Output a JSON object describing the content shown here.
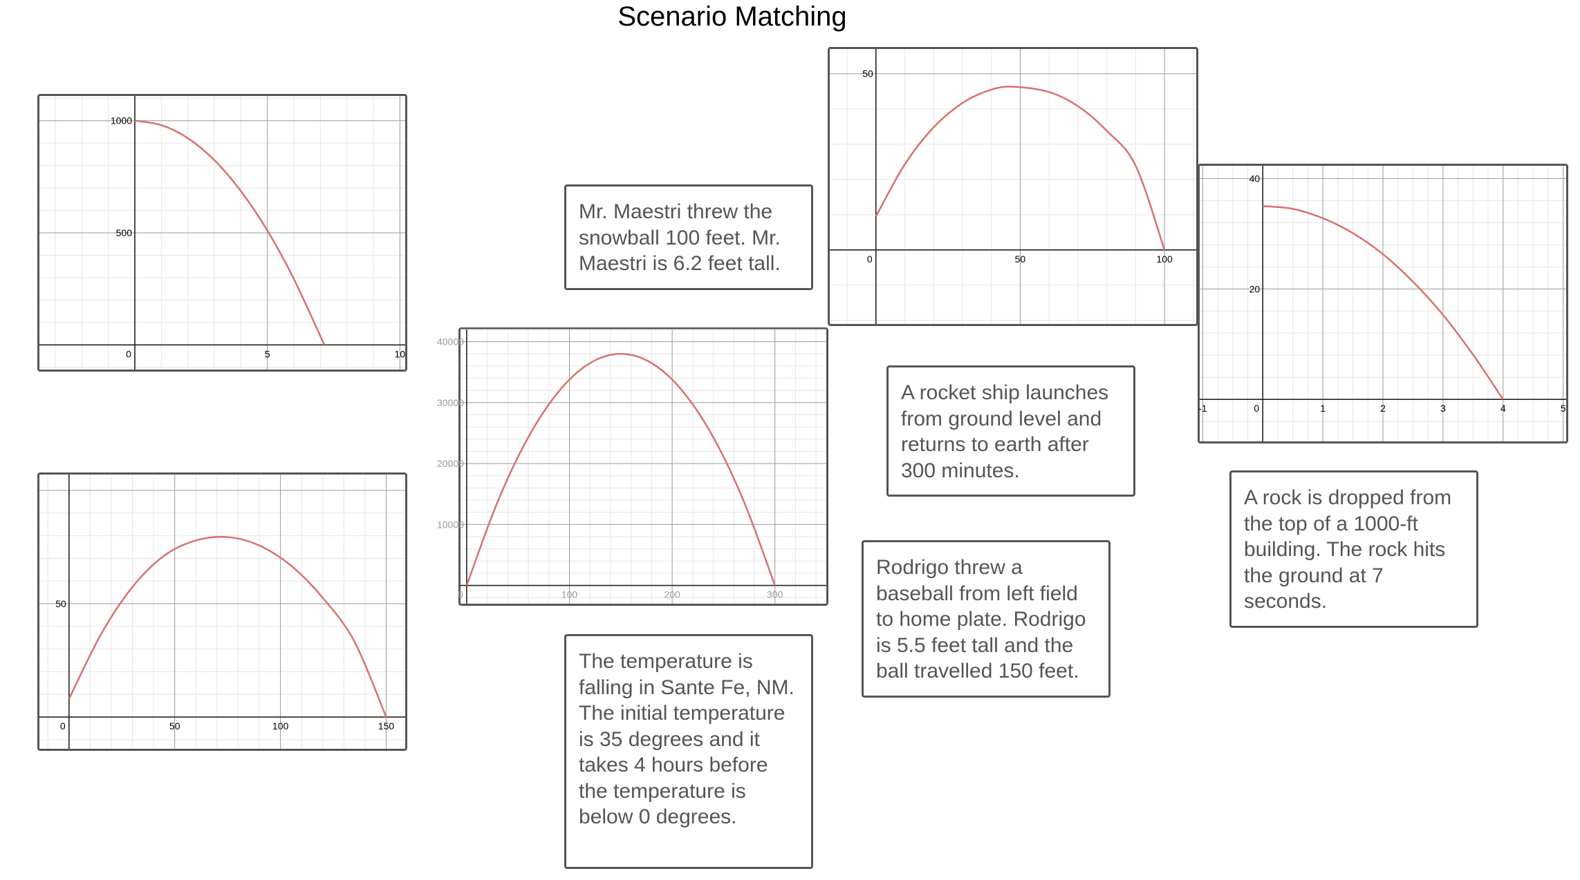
{
  "page": {
    "title": "Scenario Matching"
  },
  "colors": {
    "curve": "#d9706e",
    "minor_grid": "#e6e6e6",
    "major_grid": "#9a9a9a",
    "axis": "#222222",
    "border": "#555555",
    "card_text": "#555555"
  },
  "scenarios": [
    {
      "id": "snowball",
      "text": "Mr. Maestri threw the snowball 100 feet. Mr. Maestri is 6.2 feet tall."
    },
    {
      "id": "rocket",
      "text": "A rocket ship launches from ground level and returns to earth after 300 minutes."
    },
    {
      "id": "rock",
      "text": "A rock is dropped from the top of a 1000-ft building. The rock hits the ground at 7 seconds."
    },
    {
      "id": "baseball",
      "text": "Rodrigo threw a baseball from left field to home plate. Rodrigo is 5.5 feet tall and the ball travelled 150 feet."
    },
    {
      "id": "temperature",
      "text": "The temperature is falling in Sante Fe, NM. The initial temperature is 35 degrees and it takes 4 hours before the temperature is below 0 degrees."
    }
  ],
  "chart_data": [
    {
      "id": "graph-a",
      "type": "line",
      "xlim": [
        -3.6,
        10.2
      ],
      "ylim": [
        -110,
        1110
      ],
      "major_x": 5,
      "minor_x": 1,
      "major_y": 500,
      "minor_y": 100,
      "x_ticks": [
        {
          "v": 0,
          "label": "0"
        },
        {
          "v": 5,
          "label": "5"
        },
        {
          "v": 10,
          "label": "10"
        }
      ],
      "y_ticks": [
        {
          "v": 500,
          "label": "500"
        },
        {
          "v": 1000,
          "label": "1000"
        }
      ],
      "grey_labels": false,
      "series": [
        {
          "x": [
            0,
            1,
            2,
            3,
            4,
            5,
            6,
            7.15
          ],
          "y": [
            1000,
            980,
            922,
            824,
            686,
            510,
            294,
            0
          ]
        }
      ]
    },
    {
      "id": "graph-b",
      "type": "line",
      "xlim": [
        -14,
        159
      ],
      "ylim": [
        -14,
        107
      ],
      "major_x": 50,
      "minor_x": 10,
      "major_y": 50,
      "minor_y": 10,
      "x_ticks": [
        {
          "v": 0,
          "label": "0"
        },
        {
          "v": 50,
          "label": "50"
        },
        {
          "v": 100,
          "label": "100"
        },
        {
          "v": 150,
          "label": "150"
        }
      ],
      "y_ticks": [
        {
          "v": 50,
          "label": "50"
        }
      ],
      "grey_labels": false,
      "series": [
        {
          "x": [
            0,
            15,
            30,
            45,
            60,
            75,
            90,
            105,
            120,
            135,
            150
          ],
          "y": [
            8,
            36.3,
            57.4,
            71.2,
            77.9,
            79.4,
            75.7,
            66.8,
            52.6,
            33.3,
            0
          ]
        }
      ]
    },
    {
      "id": "graph-c",
      "type": "line",
      "xlim": [
        -6,
        350
      ],
      "ylim": [
        -3000,
        42000
      ],
      "major_x": 100,
      "minor_x": 20,
      "major_y": 10000,
      "minor_y": 2000,
      "x_ticks": [
        {
          "v": 0,
          "label": "0"
        },
        {
          "v": 100,
          "label": "100"
        },
        {
          "v": 200,
          "label": "200"
        },
        {
          "v": 300,
          "label": "300"
        }
      ],
      "y_ticks": [
        {
          "v": 10000,
          "label": "10000"
        },
        {
          "v": 20000,
          "label": "20000"
        },
        {
          "v": 30000,
          "label": "30000"
        },
        {
          "v": 40000,
          "label": "40000"
        }
      ],
      "grey_labels": true,
      "series": [
        {
          "x": [
            0,
            30,
            60,
            90,
            120,
            150,
            180,
            210,
            240,
            270,
            300
          ],
          "y": [
            0,
            13680,
            24320,
            31920,
            36480,
            38000,
            36480,
            31920,
            24320,
            13680,
            0
          ]
        }
      ]
    },
    {
      "id": "graph-d",
      "type": "line",
      "xlim": [
        -16,
        111
      ],
      "ylim": [
        -21,
        57
      ],
      "major_x": 50,
      "minor_x": 10,
      "major_y": 50,
      "minor_y": 10,
      "x_ticks": [
        {
          "v": 0,
          "label": "0"
        },
        {
          "v": 50,
          "label": "50"
        },
        {
          "v": 100,
          "label": "100"
        }
      ],
      "y_ticks": [
        {
          "v": 50,
          "label": "50"
        }
      ],
      "grey_labels": false,
      "series": [
        {
          "x": [
            0,
            10,
            20,
            30,
            40,
            48,
            60,
            70,
            80,
            90,
            100
          ],
          "y": [
            9.5,
            24.3,
            34.8,
            41.7,
            45.5,
            46.3,
            44.8,
            40.8,
            33.8,
            23.9,
            0
          ]
        }
      ]
    },
    {
      "id": "graph-e",
      "type": "line",
      "xlim": [
        -1.05,
        5.05
      ],
      "ylim": [
        -7.6,
        42.3
      ],
      "major_x": 1,
      "minor_x": 0.25,
      "major_y": 20,
      "minor_y": 4,
      "x_ticks": [
        {
          "v": -1,
          "label": "-1"
        },
        {
          "v": 0,
          "label": "0"
        },
        {
          "v": 1,
          "label": "1"
        },
        {
          "v": 2,
          "label": "2"
        },
        {
          "v": 3,
          "label": "3"
        },
        {
          "v": 4,
          "label": "4"
        },
        {
          "v": 5,
          "label": "5"
        }
      ],
      "y_ticks": [
        {
          "v": 20,
          "label": "20"
        },
        {
          "v": 40,
          "label": "40"
        }
      ],
      "grey_labels": false,
      "series": [
        {
          "x": [
            0,
            0.5,
            1,
            1.5,
            2,
            2.5,
            3,
            3.5,
            4
          ],
          "y": [
            35,
            34.5,
            32.8,
            30.1,
            26.3,
            21.3,
            15.3,
            8.1,
            0
          ]
        }
      ]
    }
  ]
}
